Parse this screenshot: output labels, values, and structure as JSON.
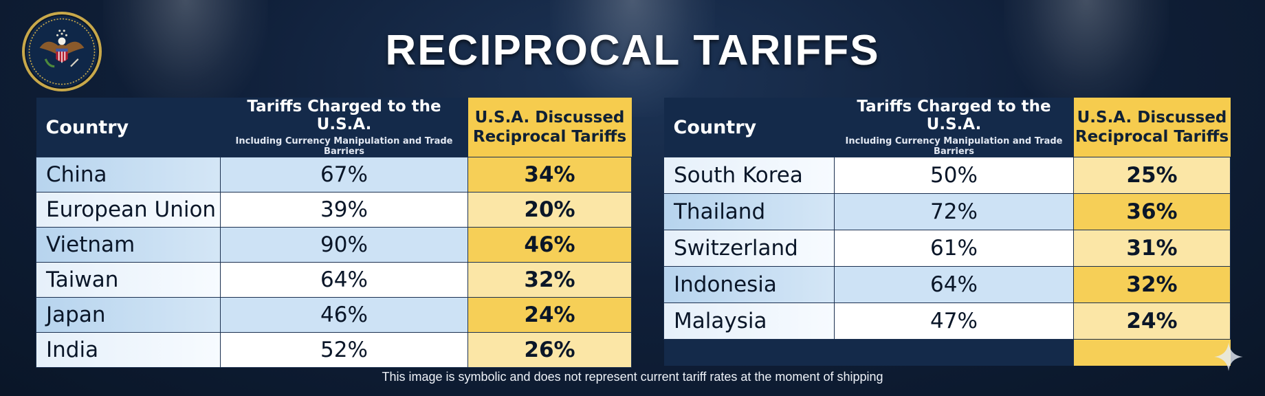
{
  "title": "RECIPROCAL TARIFFS",
  "table_headers": {
    "country": "Country",
    "tariffs_charged": "Tariffs Charged to the U.S.A.",
    "tariffs_charged_sub": "Including Currency Manipulation and Trade Barriers",
    "reciprocal_line1": "U.S.A. Discussed",
    "reciprocal_line2": "Reciprocal Tariffs"
  },
  "left_table": {
    "rows": [
      {
        "country": "China",
        "tariff": "67%",
        "reciprocal": "34%"
      },
      {
        "country": "European Union",
        "tariff": "39%",
        "reciprocal": "20%"
      },
      {
        "country": "Vietnam",
        "tariff": "90%",
        "reciprocal": "46%"
      },
      {
        "country": "Taiwan",
        "tariff": "64%",
        "reciprocal": "32%"
      },
      {
        "country": "Japan",
        "tariff": "46%",
        "reciprocal": "24%"
      },
      {
        "country": "India",
        "tariff": "52%",
        "reciprocal": "26%"
      }
    ]
  },
  "right_table": {
    "rows": [
      {
        "country": "South Korea",
        "tariff": "50%",
        "reciprocal": "25%"
      },
      {
        "country": "Thailand",
        "tariff": "72%",
        "reciprocal": "36%"
      },
      {
        "country": "Switzerland",
        "tariff": "61%",
        "reciprocal": "31%"
      },
      {
        "country": "Indonesia",
        "tariff": "64%",
        "reciprocal": "32%"
      },
      {
        "country": "Malaysia",
        "tariff": "47%",
        "reciprocal": "24%"
      }
    ]
  },
  "footnote": "This image is symbolic and does not represent current tariff rates at the moment of shipping",
  "colors": {
    "background": "#0f1f38",
    "header_navy": "#142a4a",
    "accent_gold": "#f6cc4e",
    "row_blue": "#cde2f5",
    "row_white": "#ffffff"
  },
  "icons": {
    "seal": "presidential-seal-icon",
    "sparkle": "sparkle-icon"
  }
}
